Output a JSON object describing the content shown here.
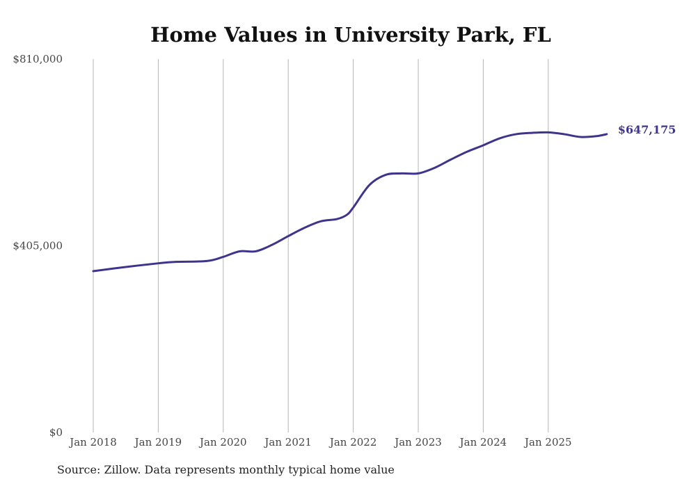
{
  "chart_data": {
    "type": "line",
    "title": "Home Values in University Park, FL",
    "ylim": [
      0,
      810000
    ],
    "yticks": [
      {
        "value": 0,
        "label": "$0"
      },
      {
        "value": 405000,
        "label": "$405,000"
      },
      {
        "value": 810000,
        "label": "$810,000"
      }
    ],
    "xlim": [
      2018.0,
      2026.0
    ],
    "xticks": [
      {
        "value": 2018,
        "label": "Jan 2018"
      },
      {
        "value": 2019,
        "label": "Jan 2019"
      },
      {
        "value": 2020,
        "label": "Jan 2020"
      },
      {
        "value": 2021,
        "label": "Jan 2021"
      },
      {
        "value": 2022,
        "label": "Jan 2022"
      },
      {
        "value": 2023,
        "label": "Jan 2023"
      },
      {
        "value": 2024,
        "label": "Jan 2024"
      },
      {
        "value": 2025,
        "label": "Jan 2025"
      }
    ],
    "grid": "vertical",
    "series": [
      {
        "name": "Typical home value",
        "color": "#3f348c",
        "x": [
          2018.0,
          2018.5,
          2019.0,
          2019.25,
          2019.75,
          2020.0,
          2020.25,
          2020.5,
          2020.75,
          2021.0,
          2021.25,
          2021.5,
          2021.75,
          2021.9,
          2022.0,
          2022.25,
          2022.5,
          2022.75,
          2023.0,
          2023.25,
          2023.5,
          2023.75,
          2024.0,
          2024.25,
          2024.5,
          2024.75,
          2025.0,
          2025.25,
          2025.5,
          2025.75,
          2025.9
        ],
        "y": [
          350000,
          359000,
          367000,
          370000,
          372000,
          381000,
          393000,
          393000,
          407000,
          426000,
          444000,
          458000,
          463000,
          472000,
          488000,
          537000,
          559000,
          562000,
          562000,
          574000,
          592000,
          609000,
          623000,
          638000,
          647000,
          650000,
          651000,
          647000,
          641000,
          643000,
          647175
        ]
      }
    ],
    "end_label": "$647,175",
    "source": "Source: Zillow. Data represents monthly typical home value"
  }
}
